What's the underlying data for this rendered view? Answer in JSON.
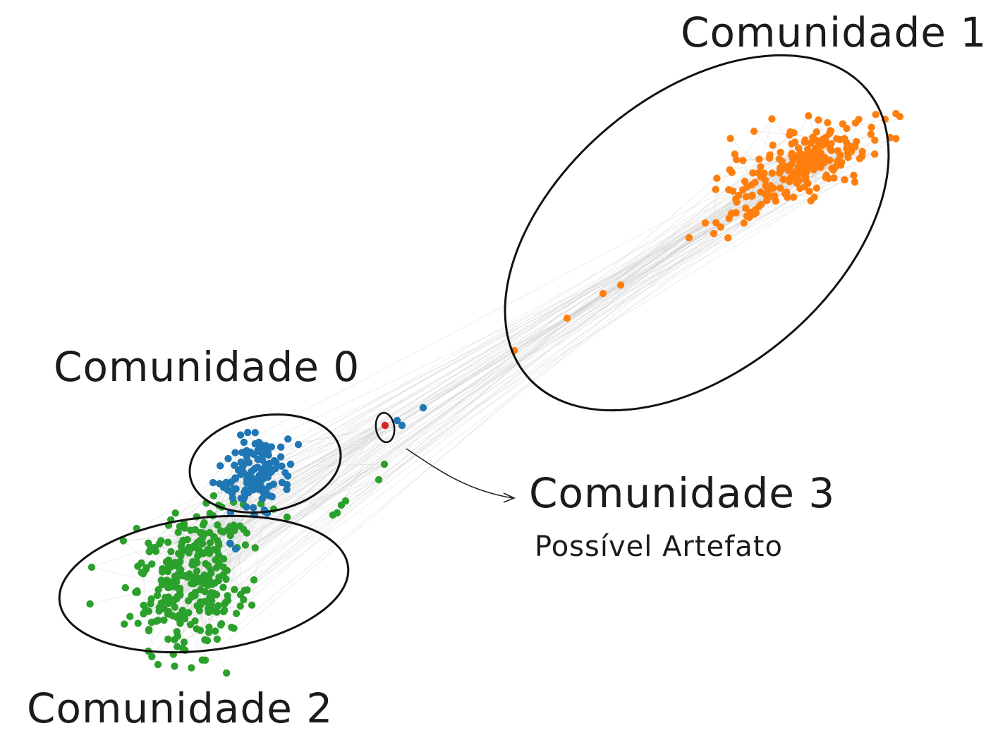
{
  "labels": {
    "community_1": "Comunidade 1",
    "community_0": "Comunidade 0",
    "community_3": "Comunidade 3",
    "community_3_note": "Possível Artefato",
    "community_2": "Comunidade 2"
  },
  "colors": {
    "community_0": "#1f77b4",
    "community_1": "#ff7f0e",
    "community_2": "#2ca02c",
    "community_3": "#d62728",
    "edges": "#cfcfcf",
    "outline": "#111111"
  }
}
